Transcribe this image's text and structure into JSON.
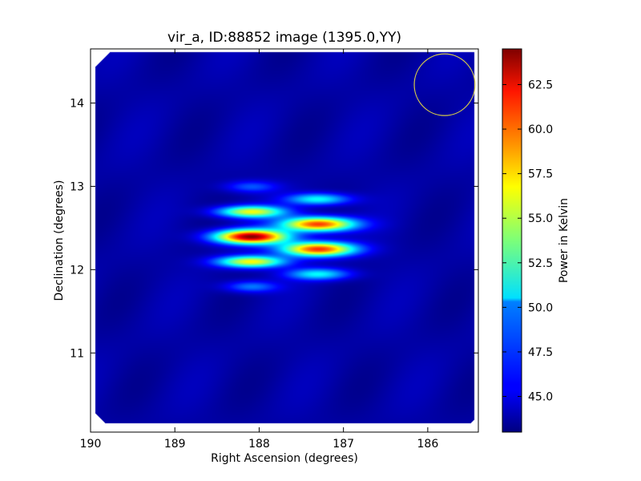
{
  "chart_data": {
    "type": "heatmap",
    "title": "vir_a, ID:88852 image (1395.0,YY)",
    "xlabel": "Right Ascension (degrees)",
    "ylabel": "Declination (degrees)",
    "xlim": [
      190.0,
      185.4
    ],
    "ylim": [
      10.05,
      14.65
    ],
    "x_ticks": [
      190,
      189,
      188,
      187,
      186
    ],
    "x_tick_labels": [
      "190",
      "189",
      "188",
      "187",
      "186"
    ],
    "y_ticks": [
      11,
      12,
      13,
      14
    ],
    "y_tick_labels": [
      "11",
      "12",
      "13",
      "14"
    ],
    "grid": false,
    "colormap": "jet",
    "colorbar": {
      "label": "Power in Kelvin",
      "range": [
        43.0,
        64.5
      ],
      "ticks": [
        45.0,
        47.5,
        50.0,
        52.5,
        55.0,
        57.5,
        60.0,
        62.5
      ],
      "tick_labels": [
        "45.0",
        "47.5",
        "50.0",
        "52.5",
        "55.0",
        "57.5",
        "60.0",
        "62.5"
      ]
    },
    "background_level": 43.8,
    "sources": [
      {
        "ra": 188.1,
        "dec": 12.4,
        "peak": 64.0,
        "sigma_ra": 0.3,
        "sigma_dec": 0.06
      },
      {
        "ra": 188.1,
        "dec": 12.1,
        "peak": 56.5,
        "sigma_ra": 0.28,
        "sigma_dec": 0.05
      },
      {
        "ra": 188.1,
        "dec": 12.7,
        "peak": 56.0,
        "sigma_ra": 0.28,
        "sigma_dec": 0.05
      },
      {
        "ra": 188.1,
        "dec": 11.8,
        "peak": 48.5,
        "sigma_ra": 0.22,
        "sigma_dec": 0.05
      },
      {
        "ra": 188.1,
        "dec": 13.0,
        "peak": 47.5,
        "sigma_ra": 0.22,
        "sigma_dec": 0.05
      },
      {
        "ra": 187.3,
        "dec": 12.55,
        "peak": 61.0,
        "sigma_ra": 0.3,
        "sigma_dec": 0.06
      },
      {
        "ra": 187.3,
        "dec": 12.25,
        "peak": 61.0,
        "sigma_ra": 0.3,
        "sigma_dec": 0.06
      },
      {
        "ra": 187.3,
        "dec": 12.85,
        "peak": 51.5,
        "sigma_ra": 0.26,
        "sigma_dec": 0.05
      },
      {
        "ra": 187.3,
        "dec": 11.95,
        "peak": 51.0,
        "sigma_ra": 0.26,
        "sigma_dec": 0.05
      }
    ],
    "beam_circle": {
      "ra": 185.8,
      "dec": 14.22,
      "radius_ra": 0.36,
      "radius_dec": 0.37,
      "color": "#d4c94a"
    },
    "colors": {
      "mask_edge": "#ffffff",
      "frame": "#000000"
    }
  }
}
